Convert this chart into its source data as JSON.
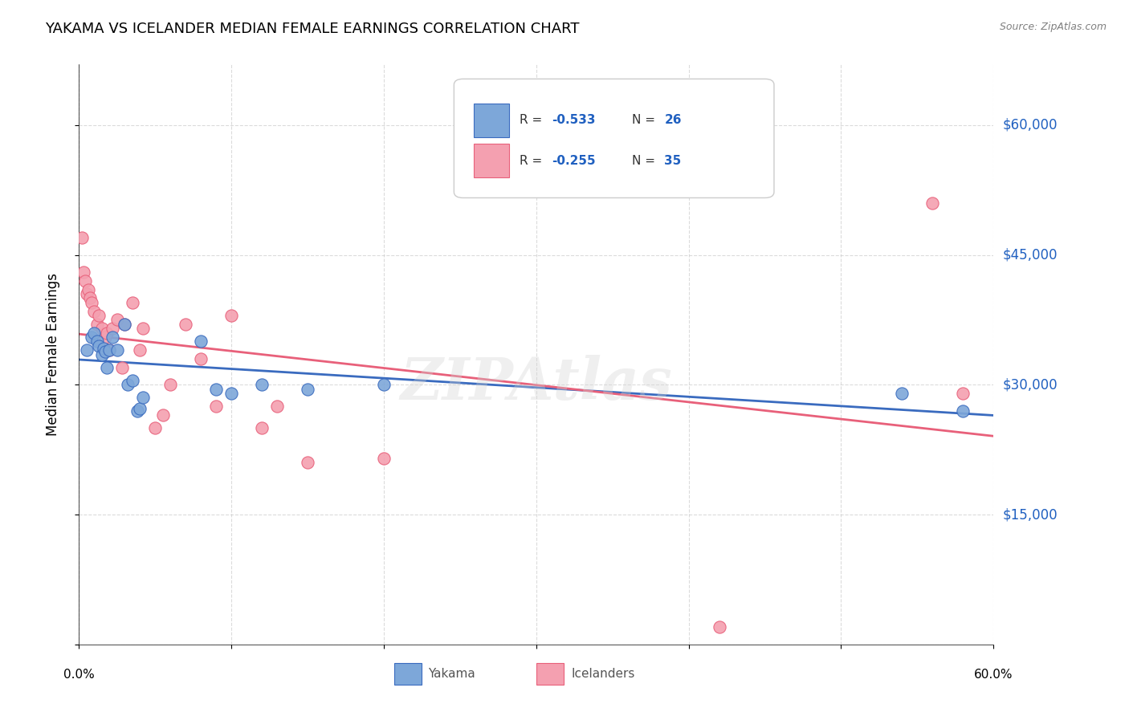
{
  "title": "YAKAMA VS ICELANDER MEDIAN FEMALE EARNINGS CORRELATION CHART",
  "source": "Source: ZipAtlas.com",
  "ylabel": "Median Female Earnings",
  "yticks": [
    0,
    15000,
    30000,
    45000,
    60000
  ],
  "ytick_labels": [
    "",
    "$15,000",
    "$30,000",
    "$45,000",
    "$60,000"
  ],
  "yakama_color": "#7da7d9",
  "icelander_color": "#f4a0b0",
  "yakama_line_color": "#3a6bbf",
  "icelander_line_color": "#e8607a",
  "background_color": "#ffffff",
  "watermark": "ZIPAtlas",
  "legend_r1": "R = -0.533",
  "legend_n1": "N = 26",
  "legend_r2": "R = -0.255",
  "legend_n2": "N = 35",
  "yakama_x": [
    0.005,
    0.008,
    0.01,
    0.012,
    0.013,
    0.015,
    0.016,
    0.017,
    0.018,
    0.02,
    0.022,
    0.025,
    0.03,
    0.032,
    0.035,
    0.038,
    0.04,
    0.042,
    0.08,
    0.09,
    0.1,
    0.12,
    0.15,
    0.2,
    0.54,
    0.58
  ],
  "yakama_y": [
    34000,
    35500,
    36000,
    35000,
    34500,
    33500,
    34200,
    33800,
    32000,
    34000,
    35500,
    34000,
    37000,
    30000,
    30500,
    27000,
    27200,
    28500,
    35000,
    29500,
    29000,
    30000,
    29500,
    30000,
    29000,
    27000
  ],
  "icelander_x": [
    0.002,
    0.003,
    0.004,
    0.005,
    0.006,
    0.007,
    0.008,
    0.01,
    0.012,
    0.013,
    0.015,
    0.017,
    0.018,
    0.02,
    0.022,
    0.025,
    0.028,
    0.03,
    0.035,
    0.04,
    0.042,
    0.05,
    0.055,
    0.06,
    0.07,
    0.08,
    0.09,
    0.1,
    0.12,
    0.13,
    0.15,
    0.2,
    0.42,
    0.56,
    0.58
  ],
  "icelander_y": [
    47000,
    43000,
    42000,
    40500,
    41000,
    40000,
    39500,
    38500,
    37000,
    38000,
    36500,
    35500,
    36000,
    34000,
    36500,
    37500,
    32000,
    37000,
    39500,
    34000,
    36500,
    25000,
    26500,
    30000,
    37000,
    33000,
    27500,
    38000,
    25000,
    27500,
    21000,
    21500,
    2000,
    51000,
    29000
  ]
}
